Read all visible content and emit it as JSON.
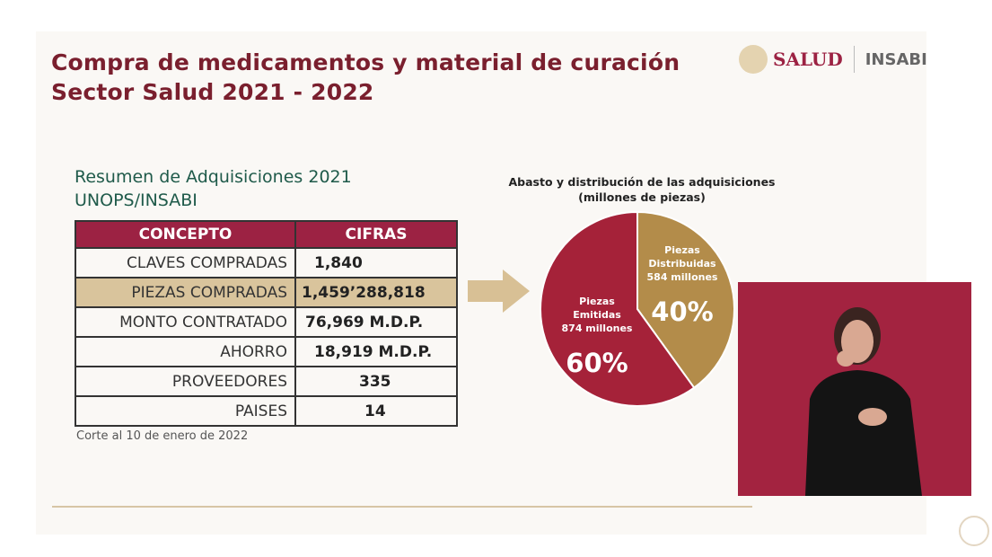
{
  "header": {
    "title_line1": "Compra de medicamentos y material de curación",
    "title_line2": "Sector Salud 2021 - 2022",
    "logo_salud": "SALUD",
    "logo_insabi": "INSABI"
  },
  "summary": {
    "title_line1": "Resumen de Adquisiciones 2021",
    "title_line2": "UNOPS/INSABI",
    "columns": [
      "CONCEPTO",
      "CIFRAS"
    ],
    "rows": [
      [
        "CLAVES COMPRADAS",
        "1,840"
      ],
      [
        "PIEZAS COMPRADAS",
        "1,459’288,818"
      ],
      [
        "MONTO CONTRATADO",
        "76,969 M.D.P."
      ],
      [
        "AHORRO",
        "18,919 M.D.P."
      ],
      [
        "PROVEEDORES",
        "335"
      ],
      [
        "PAISES",
        "14"
      ]
    ],
    "note": "Corte al 10 de enero de 2022"
  },
  "chart_data": {
    "type": "pie",
    "title": "Abasto y distribución de las adquisiciones",
    "subtitle": "(millones de piezas)",
    "slices": [
      {
        "label": "Piezas Emitidas",
        "value_text": "874 millones",
        "value": 874,
        "percent": "60%",
        "color": "#a52239"
      },
      {
        "label": "Piezas Distribuidas",
        "value_text": "584 millones",
        "value": 584,
        "percent": "40%",
        "color": "#b38c4a"
      }
    ]
  },
  "colors": {
    "header": "#9c2243",
    "highlight": "#d9c49c",
    "title": "#7a1f2e",
    "subtitle": "#1f5a4a"
  }
}
